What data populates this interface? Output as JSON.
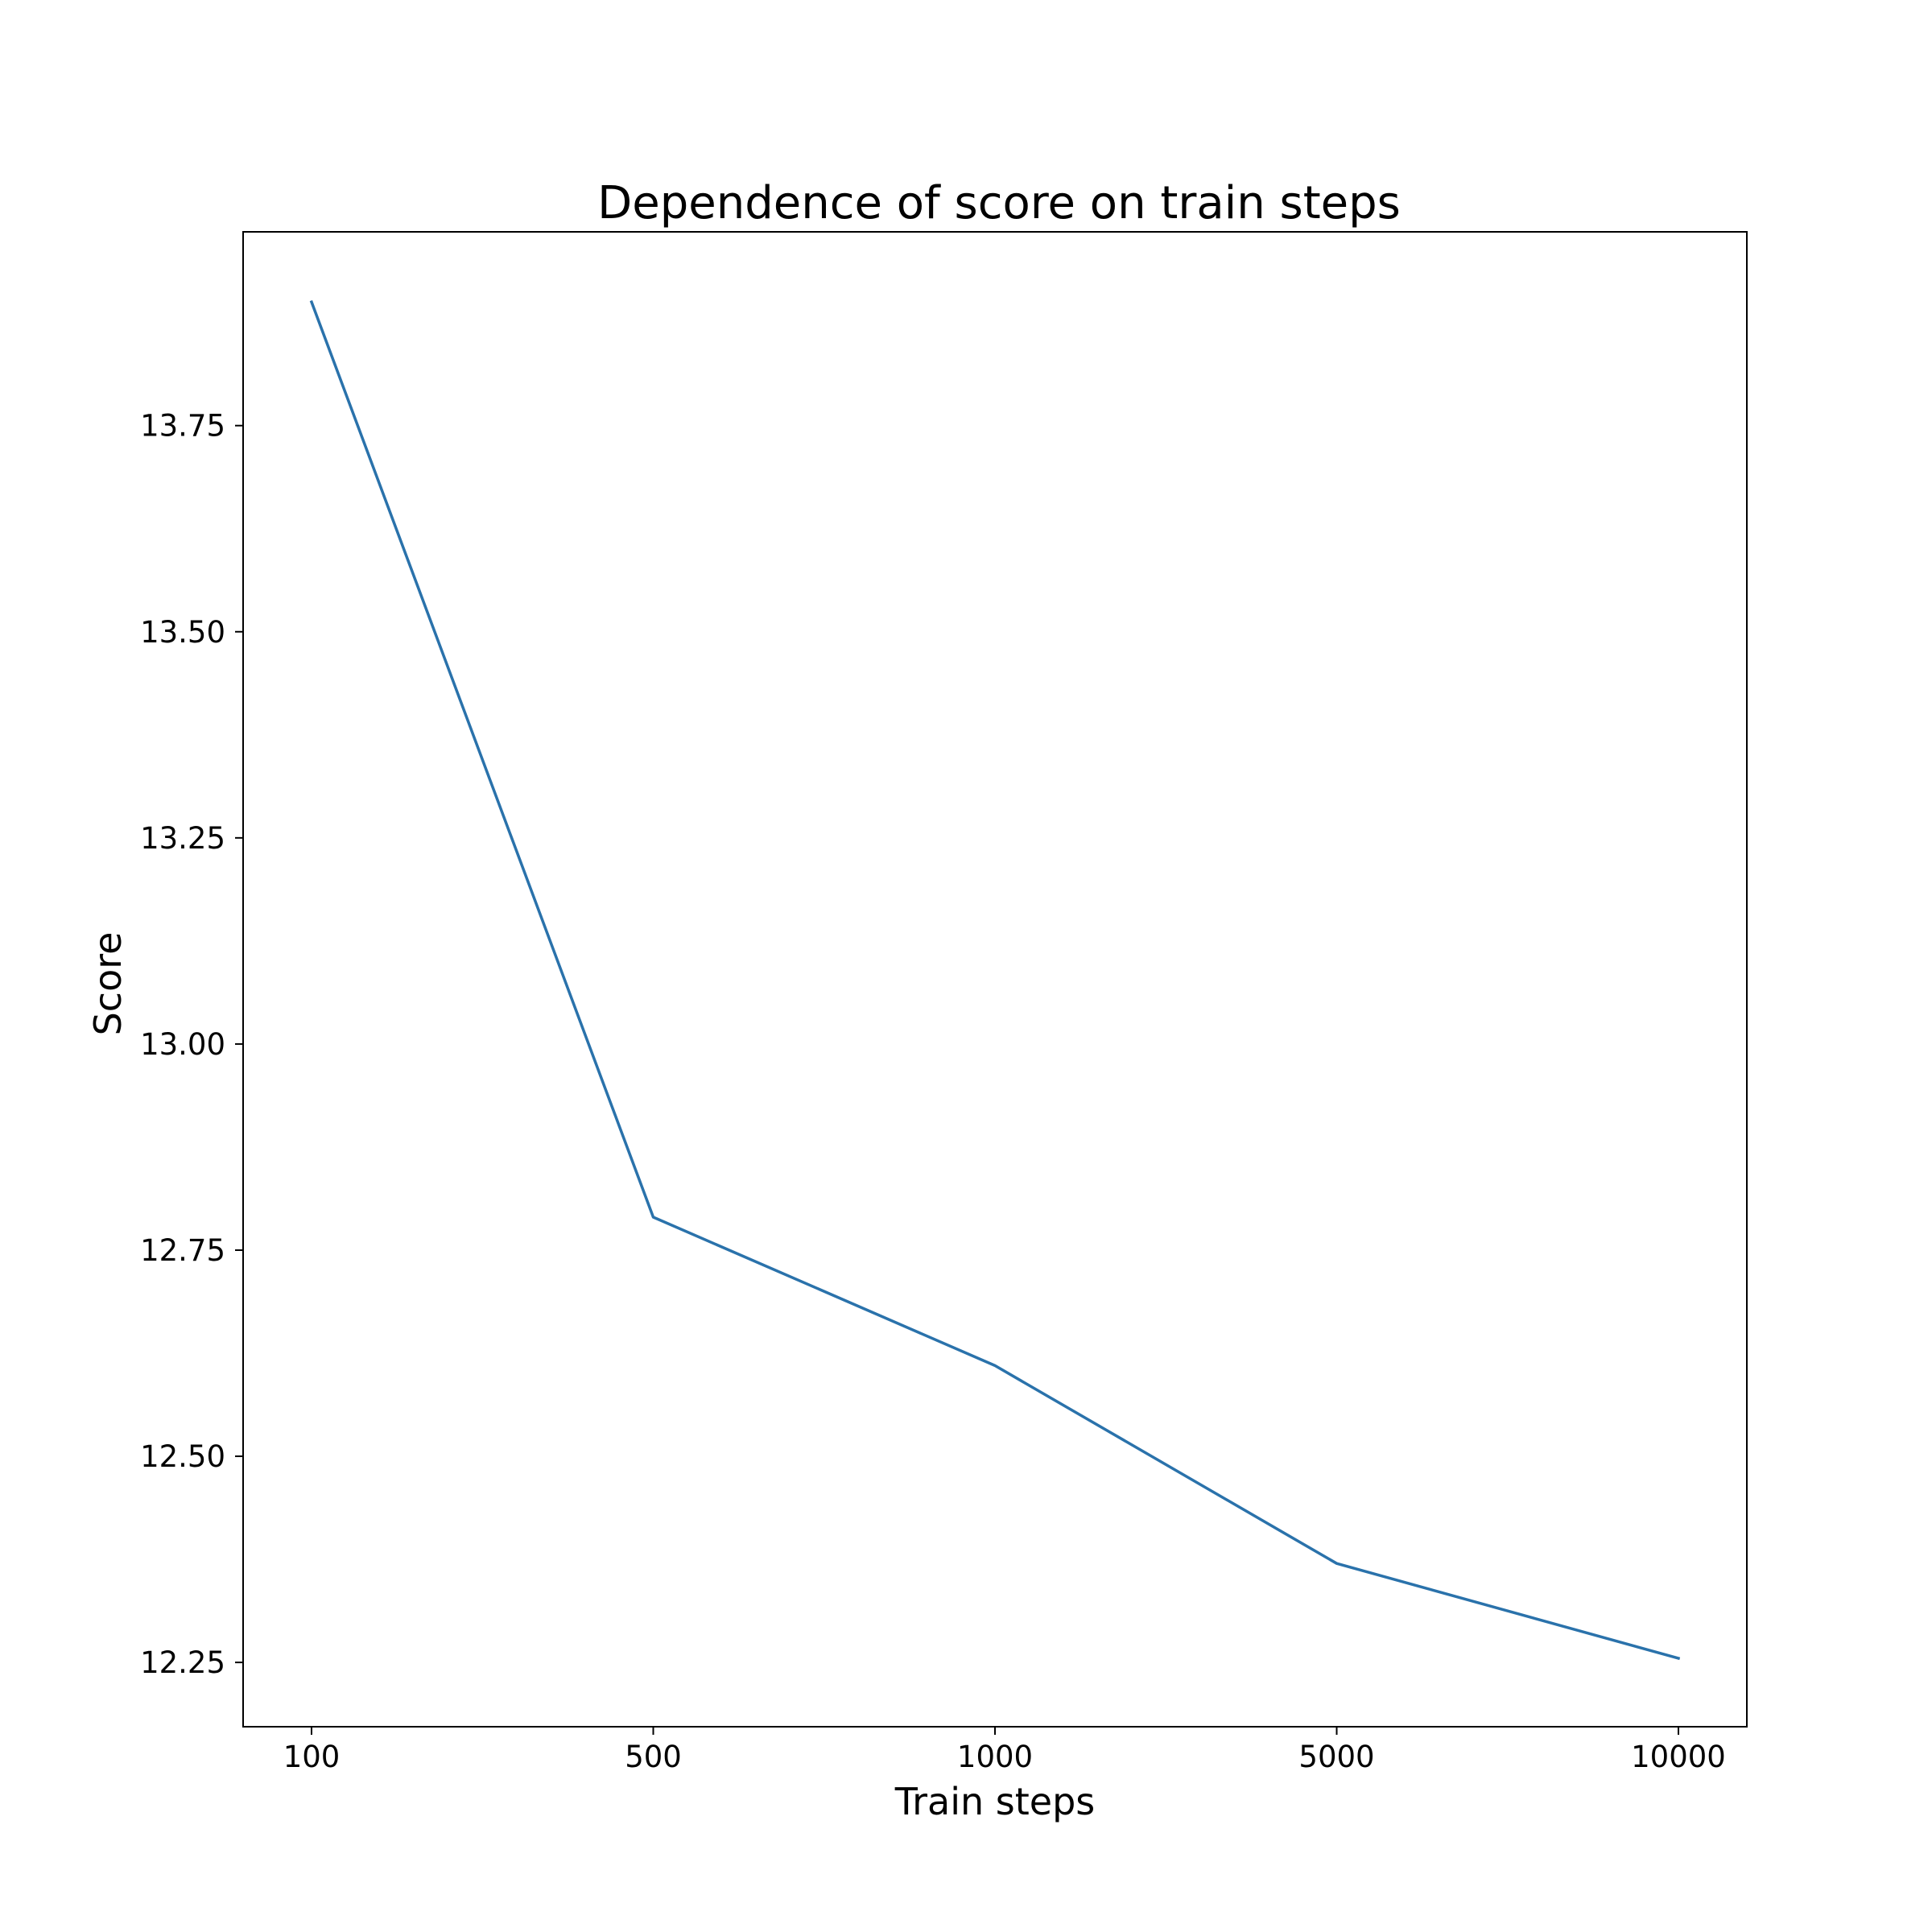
{
  "chart_data": {
    "type": "line",
    "title": "Dependence of score on train steps",
    "xlabel": "Train steps",
    "ylabel": "Score",
    "x_scale": "categorical",
    "categories": [
      "100",
      "500",
      "1000",
      "5000",
      "10000"
    ],
    "series": [
      {
        "values": [
          13.9,
          12.79,
          12.61,
          12.37,
          12.255
        ],
        "color": "#2a72ab"
      }
    ],
    "yticks": [
      12.25,
      12.5,
      12.75,
      13.0,
      13.25,
      13.5,
      13.75
    ],
    "ytick_labels": [
      "12.25",
      "12.50",
      "12.75",
      "13.00",
      "13.25",
      "13.50",
      "13.75"
    ],
    "ylim": [
      12.172,
      13.985
    ],
    "grid": false,
    "legend": "none"
  }
}
